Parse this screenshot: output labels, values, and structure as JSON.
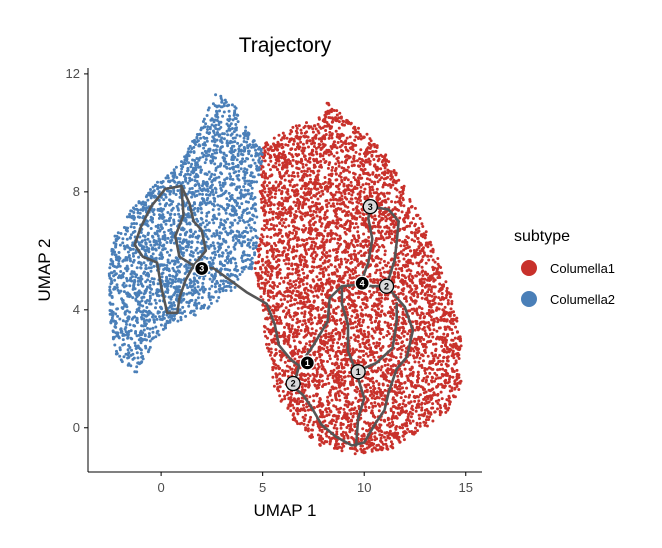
{
  "chart_data": {
    "type": "scatter",
    "title": "Trajectory",
    "xlabel": "UMAP 1",
    "ylabel": "UMAP 2",
    "xlim": [
      -3.6,
      15.8
    ],
    "ylim": [
      -1.5,
      12.2
    ],
    "xticks": [
      0,
      5,
      10,
      15
    ],
    "yticks": [
      0,
      4,
      8,
      12
    ],
    "grid": false,
    "legend": {
      "title": "subtype",
      "position": "right",
      "entries": [
        {
          "name": "Columella1",
          "color": "#c8312b"
        },
        {
          "name": "Columella2",
          "color": "#4a7fb8"
        }
      ]
    },
    "series": [
      {
        "name": "Columella1",
        "color": "#c8312b",
        "outline": [
          [
            5.0,
            9.6
          ],
          [
            6.5,
            10.2
          ],
          [
            8.0,
            10.6
          ],
          [
            8.2,
            11.2
          ],
          [
            9.0,
            10.5
          ],
          [
            10.5,
            9.8
          ],
          [
            11.5,
            8.9
          ],
          [
            12.5,
            7.5
          ],
          [
            13.5,
            6.0
          ],
          [
            14.3,
            4.5
          ],
          [
            14.8,
            3.0
          ],
          [
            14.8,
            1.5
          ],
          [
            14.2,
            0.6
          ],
          [
            13.0,
            0.0
          ],
          [
            11.5,
            -0.7
          ],
          [
            9.5,
            -0.9
          ],
          [
            7.8,
            -0.6
          ],
          [
            6.5,
            0.2
          ],
          [
            5.6,
            1.2
          ],
          [
            5.2,
            2.4
          ],
          [
            5.0,
            4.0
          ],
          [
            4.6,
            5.5
          ],
          [
            5.0,
            7.0
          ],
          [
            4.8,
            8.5
          ]
        ]
      },
      {
        "name": "Columella2",
        "color": "#4a7fb8",
        "outline": [
          [
            2.7,
            11.4
          ],
          [
            3.6,
            11.0
          ],
          [
            4.3,
            10.0
          ],
          [
            5.1,
            9.3
          ],
          [
            4.6,
            8.0
          ],
          [
            4.8,
            6.5
          ],
          [
            4.4,
            5.2
          ],
          [
            3.2,
            4.5
          ],
          [
            2.0,
            3.9
          ],
          [
            0.4,
            3.5
          ],
          [
            -0.7,
            2.5
          ],
          [
            -1.2,
            1.8
          ],
          [
            -2.2,
            2.4
          ],
          [
            -2.5,
            3.6
          ],
          [
            -2.6,
            5.0
          ],
          [
            -2.4,
            6.4
          ],
          [
            -1.5,
            7.4
          ],
          [
            -0.4,
            8.2
          ],
          [
            0.8,
            8.9
          ],
          [
            1.8,
            10.0
          ]
        ]
      }
    ],
    "trajectory_paths": [
      [
        [
          1.0,
          8.2
        ],
        [
          1.4,
          7.6
        ],
        [
          1.6,
          7.0
        ],
        [
          2.0,
          6.7
        ],
        [
          2.2,
          6.0
        ],
        [
          1.6,
          5.5
        ],
        [
          1.2,
          5.0
        ],
        [
          0.9,
          4.4
        ],
        [
          0.8,
          3.9
        ],
        [
          0.3,
          3.9
        ],
        [
          0.0,
          4.8
        ],
        [
          -0.2,
          5.6
        ],
        [
          -0.9,
          5.8
        ],
        [
          -1.3,
          6.2
        ],
        [
          -1.0,
          6.8
        ],
        [
          -0.5,
          7.5
        ],
        [
          0.2,
          8.1
        ],
        [
          1.0,
          8.2
        ]
      ],
      [
        [
          1.0,
          8.2
        ],
        [
          1.1,
          7.2
        ],
        [
          0.7,
          6.5
        ],
        [
          0.9,
          5.8
        ],
        [
          1.6,
          5.5
        ]
      ],
      [
        [
          1.6,
          5.5
        ],
        [
          2.6,
          5.4
        ],
        [
          3.4,
          5.0
        ],
        [
          4.2,
          4.6
        ],
        [
          5.2,
          4.2
        ],
        [
          5.6,
          3.5
        ],
        [
          5.8,
          2.8
        ],
        [
          6.4,
          2.3
        ],
        [
          6.8,
          2.1
        ]
      ],
      [
        [
          6.8,
          2.1
        ],
        [
          6.5,
          1.4
        ]
      ],
      [
        [
          6.8,
          2.1
        ],
        [
          7.5,
          2.8
        ],
        [
          8.2,
          3.6
        ],
        [
          8.3,
          4.4
        ],
        [
          8.9,
          4.8
        ],
        [
          9.8,
          4.85
        ],
        [
          10.4,
          4.8
        ],
        [
          11.1,
          4.8
        ]
      ],
      [
        [
          9.8,
          4.85
        ],
        [
          10.2,
          5.6
        ],
        [
          10.4,
          6.4
        ],
        [
          10.2,
          7.1
        ],
        [
          10.3,
          7.5
        ]
      ],
      [
        [
          10.3,
          7.5
        ],
        [
          11.2,
          7.4
        ],
        [
          11.7,
          7.0
        ],
        [
          11.6,
          6.3
        ],
        [
          11.5,
          5.7
        ],
        [
          11.1,
          4.8
        ]
      ],
      [
        [
          11.1,
          4.8
        ],
        [
          12.0,
          4.1
        ],
        [
          12.4,
          3.3
        ],
        [
          12.1,
          2.4
        ],
        [
          11.6,
          2.0
        ],
        [
          11.2,
          1.2
        ],
        [
          11.0,
          0.6
        ],
        [
          10.6,
          0.2
        ],
        [
          10.0,
          -0.5
        ],
        [
          9.4,
          -0.6
        ],
        [
          8.6,
          -0.3
        ],
        [
          7.9,
          0.1
        ],
        [
          7.4,
          0.7
        ],
        [
          7.0,
          1.1
        ],
        [
          6.5,
          1.4
        ]
      ],
      [
        [
          9.6,
          1.9
        ],
        [
          9.2,
          2.6
        ],
        [
          9.2,
          3.5
        ],
        [
          8.9,
          4.2
        ],
        [
          8.9,
          4.8
        ]
      ],
      [
        [
          9.6,
          1.9
        ],
        [
          10.6,
          2.2
        ],
        [
          11.4,
          2.7
        ],
        [
          11.6,
          3.6
        ],
        [
          11.6,
          4.2
        ]
      ],
      [
        [
          9.6,
          1.9
        ],
        [
          10.0,
          1.0
        ],
        [
          9.7,
          0.3
        ],
        [
          9.6,
          -0.6
        ]
      ]
    ],
    "trajectory_nodes": [
      {
        "label": "1",
        "x": 7.2,
        "y": 2.2,
        "type": "branch"
      },
      {
        "label": "4",
        "x": 9.9,
        "y": 4.9,
        "type": "branch"
      },
      {
        "label": "2",
        "x": 6.5,
        "y": 1.5,
        "type": "leaf"
      },
      {
        "label": "1",
        "x": 9.7,
        "y": 1.9,
        "type": "leaf"
      },
      {
        "label": "2",
        "x": 11.1,
        "y": 4.8,
        "type": "leaf"
      },
      {
        "label": "3",
        "x": 10.3,
        "y": 7.5,
        "type": "leaf"
      },
      {
        "label": "3",
        "x": 2.0,
        "y": 5.4,
        "type": "branch"
      }
    ]
  }
}
